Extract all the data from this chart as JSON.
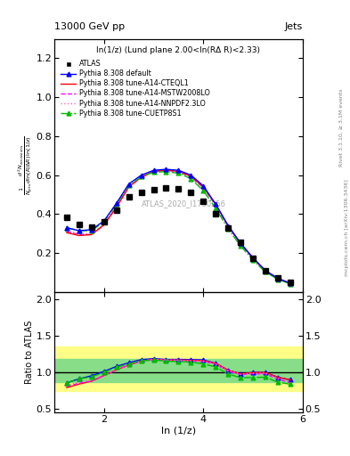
{
  "title_top": "13000 GeV pp",
  "title_right": "Jets",
  "panel_title": "ln(1/z) (Lund plane 2.00<ln(RΔ R)<2.33)",
  "ylabel_ratio": "Ratio to ATLAS",
  "xlabel": "ln (1/z)",
  "watermark": "ATLAS_2020_I1790256",
  "right_label1": "Rivet 3.1.10, ≥ 3.1M events",
  "right_label2": "mcplots.cern.ch [arXiv:1306.3436]",
  "atlas_x": [
    1.25,
    1.5,
    1.75,
    2.0,
    2.25,
    2.5,
    2.75,
    3.0,
    3.25,
    3.5,
    3.75,
    4.0,
    4.25,
    4.5,
    4.75,
    5.0,
    5.25,
    5.5,
    5.75
  ],
  "atlas_y": [
    0.385,
    0.345,
    0.335,
    0.36,
    0.42,
    0.49,
    0.51,
    0.525,
    0.535,
    0.53,
    0.51,
    0.465,
    0.4,
    0.33,
    0.255,
    0.175,
    0.11,
    0.075,
    0.05
  ],
  "default_x": [
    1.25,
    1.5,
    1.75,
    2.0,
    2.25,
    2.5,
    2.75,
    3.0,
    3.25,
    3.5,
    3.75,
    4.0,
    4.25,
    4.5,
    4.75,
    5.0,
    5.25,
    5.5,
    5.75
  ],
  "default_y": [
    0.33,
    0.315,
    0.32,
    0.365,
    0.455,
    0.555,
    0.6,
    0.625,
    0.63,
    0.625,
    0.6,
    0.545,
    0.45,
    0.34,
    0.25,
    0.175,
    0.11,
    0.07,
    0.045
  ],
  "cteql1_x": [
    1.25,
    1.5,
    1.75,
    2.0,
    2.25,
    2.5,
    2.75,
    3.0,
    3.25,
    3.5,
    3.75,
    4.0,
    4.25,
    4.5,
    4.75,
    5.0,
    5.25,
    5.5,
    5.75
  ],
  "cteql1_y": [
    0.305,
    0.29,
    0.295,
    0.345,
    0.435,
    0.54,
    0.59,
    0.62,
    0.625,
    0.62,
    0.595,
    0.54,
    0.45,
    0.34,
    0.25,
    0.175,
    0.11,
    0.07,
    0.045
  ],
  "mstw_x": [
    1.25,
    1.5,
    1.75,
    2.0,
    2.25,
    2.5,
    2.75,
    3.0,
    3.25,
    3.5,
    3.75,
    4.0,
    4.25,
    4.5,
    4.75,
    5.0,
    5.25,
    5.5,
    5.75
  ],
  "mstw_y": [
    0.31,
    0.295,
    0.295,
    0.345,
    0.435,
    0.54,
    0.588,
    0.618,
    0.625,
    0.618,
    0.59,
    0.535,
    0.445,
    0.335,
    0.248,
    0.172,
    0.108,
    0.068,
    0.043
  ],
  "nnpdf_x": [
    1.25,
    1.5,
    1.75,
    2.0,
    2.25,
    2.5,
    2.75,
    3.0,
    3.25,
    3.5,
    3.75,
    4.0,
    4.25,
    4.5,
    4.75,
    5.0,
    5.25,
    5.5,
    5.75
  ],
  "nnpdf_y": [
    0.315,
    0.3,
    0.3,
    0.348,
    0.438,
    0.542,
    0.59,
    0.62,
    0.626,
    0.62,
    0.592,
    0.537,
    0.447,
    0.338,
    0.249,
    0.173,
    0.109,
    0.069,
    0.044
  ],
  "cuetp_x": [
    1.25,
    1.5,
    1.75,
    2.0,
    2.25,
    2.5,
    2.75,
    3.0,
    3.25,
    3.5,
    3.75,
    4.0,
    4.25,
    4.5,
    4.75,
    5.0,
    5.25,
    5.5,
    5.75
  ],
  "cuetp_y": [
    0.33,
    0.315,
    0.315,
    0.36,
    0.45,
    0.548,
    0.592,
    0.615,
    0.618,
    0.61,
    0.582,
    0.52,
    0.43,
    0.323,
    0.237,
    0.163,
    0.103,
    0.065,
    0.042
  ],
  "atlas_color": "#000000",
  "default_color": "#0000ff",
  "cteql1_color": "#ff0000",
  "mstw_color": "#ff00ff",
  "nnpdf_color": "#ff69b4",
  "cuetp_color": "#00bb00",
  "band_yellow_lo": 0.75,
  "band_yellow_hi": 1.35,
  "band_green_lo": 0.87,
  "band_green_hi": 1.18,
  "ratio_default_y": [
    0.857,
    0.913,
    0.955,
    1.014,
    1.083,
    1.133,
    1.176,
    1.19,
    1.178,
    1.179,
    1.176,
    1.172,
    1.125,
    1.03,
    0.98,
    1.0,
    1.0,
    0.933,
    0.9
  ],
  "ratio_cteql1_y": [
    0.792,
    0.841,
    0.881,
    0.958,
    1.036,
    1.102,
    1.157,
    1.181,
    1.168,
    1.17,
    1.167,
    1.161,
    1.125,
    1.03,
    0.98,
    1.0,
    1.0,
    0.933,
    0.9
  ],
  "ratio_mstw_y": [
    0.805,
    0.855,
    0.881,
    0.958,
    1.036,
    1.102,
    1.153,
    1.177,
    1.168,
    1.166,
    1.157,
    1.151,
    1.113,
    1.015,
    0.973,
    0.983,
    0.982,
    0.907,
    0.86
  ],
  "ratio_nnpdf_y": [
    0.818,
    0.87,
    0.896,
    0.967,
    1.043,
    1.106,
    1.157,
    1.181,
    1.17,
    1.17,
    1.161,
    1.156,
    1.118,
    1.024,
    0.976,
    0.989,
    0.991,
    0.92,
    0.88
  ],
  "ratio_cuetp_y": [
    0.857,
    0.913,
    0.94,
    1.0,
    1.071,
    1.118,
    1.161,
    1.171,
    1.155,
    1.151,
    1.141,
    1.118,
    1.075,
    0.979,
    0.929,
    0.931,
    0.936,
    0.867,
    0.84
  ],
  "xlim": [
    1.0,
    6.0
  ],
  "ylim_main": [
    0.0,
    1.3
  ],
  "ylim_ratio": [
    0.45,
    2.1
  ],
  "yticks_main": [
    0.2,
    0.4,
    0.6,
    0.8,
    1.0,
    1.2
  ],
  "yticks_ratio": [
    0.5,
    1.0,
    1.5,
    2.0
  ]
}
